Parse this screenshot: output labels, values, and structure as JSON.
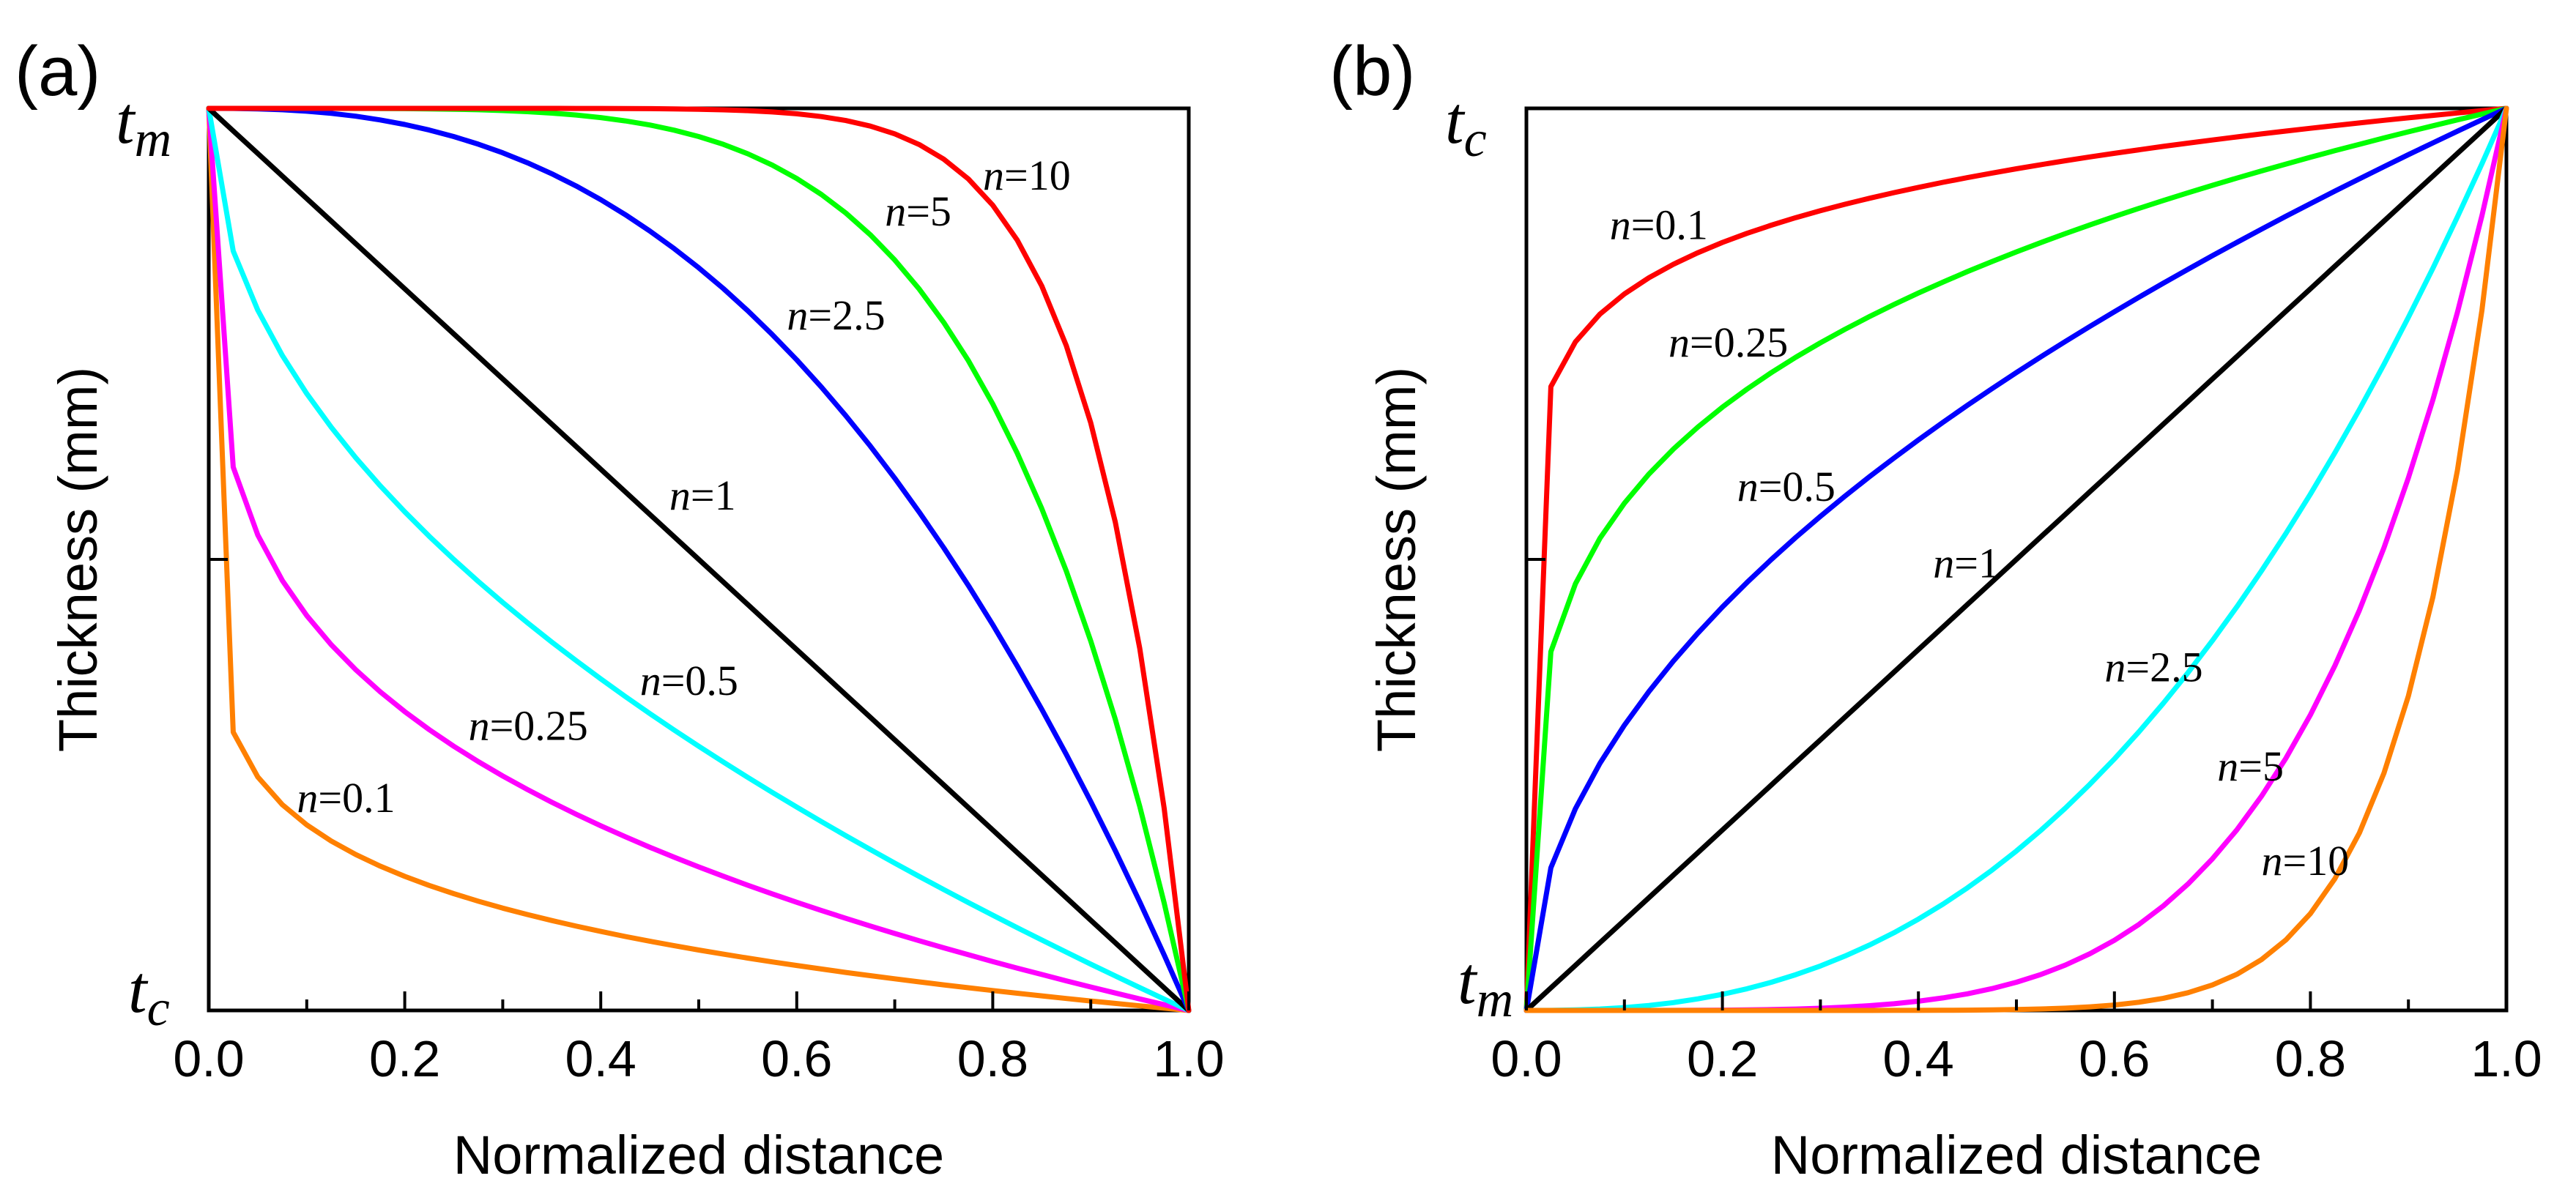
{
  "chart_data": [
    {
      "panel_label": "(a)",
      "type": "line",
      "xlabel": "Normalized distance",
      "ylabel": "Thickness (mm)",
      "xlim": [
        0,
        1
      ],
      "xticks": [
        "0.0",
        "0.2",
        "0.4",
        "0.6",
        "0.8",
        "1.0"
      ],
      "y_top_label": {
        "base": "t",
        "sub": "m"
      },
      "y_bottom_label": {
        "base": "t",
        "sub": "c"
      },
      "formula": "y = 1 - x^n",
      "series": [
        {
          "name": "n=0.1",
          "n": 0.1,
          "color": "#ff8000",
          "label_var": "n",
          "label_val": "=0.1",
          "label_at": [
            0.09,
            0.22
          ]
        },
        {
          "name": "n=0.25",
          "n": 0.25,
          "color": "#ff00ff",
          "label_var": "n",
          "label_val": "=0.25",
          "label_at": [
            0.265,
            0.3
          ]
        },
        {
          "name": "n=0.5",
          "n": 0.5,
          "color": "#00ffff",
          "label_var": "n",
          "label_val": "=0.5",
          "label_at": [
            0.44,
            0.35
          ]
        },
        {
          "name": "n=1",
          "n": 1,
          "color": "#000000",
          "label_var": "n",
          "label_val": "=1",
          "label_at": [
            0.47,
            0.555
          ]
        },
        {
          "name": "n=2.5",
          "n": 2.5,
          "color": "#0000ff",
          "label_var": "n",
          "label_val": "=2.5",
          "label_at": [
            0.59,
            0.755
          ]
        },
        {
          "name": "n=5",
          "n": 5,
          "color": "#00ff00",
          "label_var": "n",
          "label_val": "=5",
          "label_at": [
            0.69,
            0.87
          ]
        },
        {
          "name": "n=10",
          "n": 10,
          "color": "#ff0000",
          "label_var": "n",
          "label_val": "=10",
          "label_at": [
            0.79,
            0.91
          ]
        }
      ]
    },
    {
      "panel_label": "(b)",
      "type": "line",
      "xlabel": "Normalized distance",
      "ylabel": "Thickness (mm)",
      "xlim": [
        0,
        1
      ],
      "xticks": [
        "0.0",
        "0.2",
        "0.4",
        "0.6",
        "0.8",
        "1.0"
      ],
      "y_top_label": {
        "base": "t",
        "sub": "c"
      },
      "y_bottom_label": {
        "base": "t",
        "sub": "m"
      },
      "formula": "y = x^n",
      "series": [
        {
          "name": "n=0.1",
          "n": 0.1,
          "color": "#ff0000",
          "label_var": "n",
          "label_val": "=0.1",
          "label_at": [
            0.085,
            0.855
          ]
        },
        {
          "name": "n=0.25",
          "n": 0.25,
          "color": "#00ff00",
          "label_var": "n",
          "label_val": "=0.25",
          "label_at": [
            0.145,
            0.725
          ]
        },
        {
          "name": "n=0.5",
          "n": 0.5,
          "color": "#0000ff",
          "label_var": "n",
          "label_val": "=0.5",
          "label_at": [
            0.215,
            0.565
          ]
        },
        {
          "name": "n=1",
          "n": 1,
          "color": "#000000",
          "label_var": "n",
          "label_val": "=1",
          "label_at": [
            0.415,
            0.48
          ]
        },
        {
          "name": "n=2.5",
          "n": 2.5,
          "color": "#00ffff",
          "label_var": "n",
          "label_val": "=2.5",
          "label_at": [
            0.59,
            0.365
          ]
        },
        {
          "name": "n=5",
          "n": 5,
          "color": "#ff00ff",
          "label_var": "n",
          "label_val": "=5",
          "label_at": [
            0.705,
            0.255
          ]
        },
        {
          "name": "n=10",
          "n": 10,
          "color": "#ff8000",
          "label_var": "n",
          "label_val": "=10",
          "label_at": [
            0.75,
            0.15
          ]
        }
      ]
    }
  ]
}
